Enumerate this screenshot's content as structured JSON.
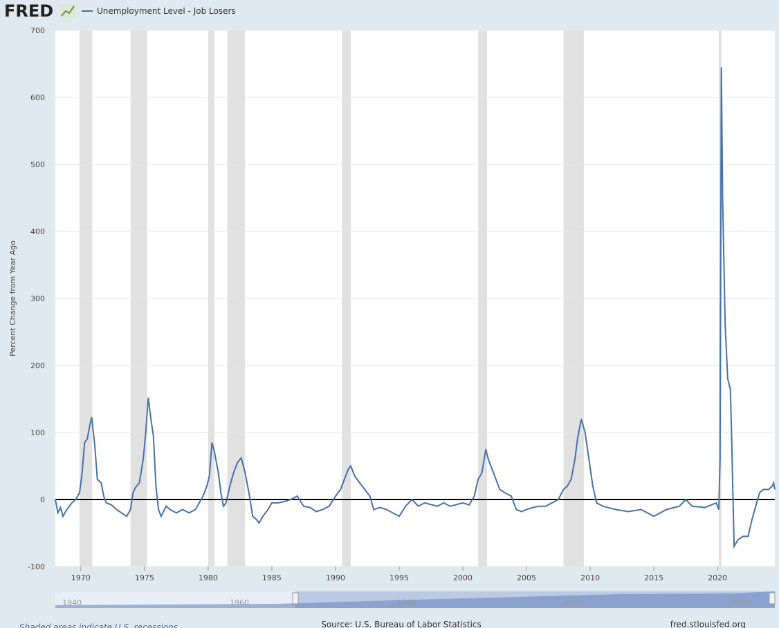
{
  "header": {
    "logo": "FRED"
  },
  "chart_data": {
    "type": "line",
    "y_label": "Percent Change from Year Ago",
    "xlim": [
      1968,
      2024.5
    ],
    "xticks": [
      1970,
      1975,
      1980,
      1985,
      1990,
      1995,
      2000,
      2005,
      2010,
      2015,
      2020
    ],
    "ylim": [
      -100,
      700
    ],
    "yticks": [
      -100,
      0,
      100,
      200,
      300,
      400,
      500,
      600,
      700
    ],
    "grid": true,
    "recessions": [
      [
        1969.9,
        1970.9
      ],
      [
        1973.9,
        1975.2
      ],
      [
        1980.0,
        1980.5
      ],
      [
        1981.5,
        1982.9
      ],
      [
        1990.5,
        1991.2
      ],
      [
        2001.2,
        2001.9
      ],
      [
        2007.9,
        2009.5
      ],
      [
        2020.1,
        2020.3
      ]
    ],
    "x": [
      1968.0,
      1968.2,
      1968.4,
      1968.6,
      1968.9,
      1969.3,
      1969.6,
      1969.9,
      1970.1,
      1970.3,
      1970.5,
      1970.7,
      1970.85,
      1971.1,
      1971.3,
      1971.6,
      1971.8,
      1972.0,
      1972.4,
      1972.8,
      1973.2,
      1973.6,
      1973.9,
      1974.1,
      1974.3,
      1974.6,
      1974.9,
      1975.1,
      1975.3,
      1975.5,
      1975.7,
      1975.9,
      1976.1,
      1976.3,
      1976.7,
      1977.0,
      1977.5,
      1978.0,
      1978.5,
      1979.0,
      1979.3,
      1979.6,
      1979.9,
      1980.1,
      1980.3,
      1980.5,
      1980.8,
      1981.0,
      1981.2,
      1981.4,
      1981.7,
      1982.0,
      1982.3,
      1982.6,
      1982.9,
      1983.2,
      1983.5,
      1983.8,
      1984.0,
      1984.3,
      1984.7,
      1985.0,
      1985.5,
      1986.0,
      1986.5,
      1987.0,
      1987.5,
      1988.0,
      1988.5,
      1989.0,
      1989.5,
      1990.0,
      1990.4,
      1990.7,
      1991.0,
      1991.2,
      1991.5,
      1991.9,
      1992.3,
      1992.7,
      1993.0,
      1993.5,
      1994.0,
      1994.5,
      1995.0,
      1995.5,
      1996.0,
      1996.5,
      1997.0,
      1998.0,
      1998.5,
      1999.0,
      2000.0,
      2000.5,
      2000.9,
      2001.2,
      2001.5,
      2001.8,
      2002.0,
      2002.3,
      2002.6,
      2002.9,
      2003.3,
      2003.8,
      2004.2,
      2004.6,
      2005.0,
      2005.5,
      2006.0,
      2006.5,
      2007.0,
      2007.5,
      2007.9,
      2008.2,
      2008.5,
      2008.8,
      2009.0,
      2009.3,
      2009.6,
      2009.9,
      2010.2,
      2010.5,
      2011.0,
      2012.0,
      2013.0,
      2014.0,
      2015.0,
      2015.5,
      2016.0,
      2017.0,
      2017.5,
      2018.0,
      2019.0,
      2019.9,
      2020.1,
      2020.2,
      2020.3,
      2020.4,
      2020.6,
      2020.8,
      2021.0,
      2021.1,
      2021.3,
      2021.6,
      2022.0,
      2022.4,
      2022.7,
      2023.0,
      2023.3,
      2023.6,
      2024.0,
      2024.3,
      2024.4,
      2024.5
    ],
    "series": [
      {
        "name": "Unemployment Level - Job Losers",
        "color": "#4572a7",
        "values": [
          0,
          -20,
          -12,
          -25,
          -15,
          -5,
          0,
          10,
          40,
          85,
          90,
          110,
          123,
          80,
          30,
          25,
          5,
          -5,
          -8,
          -15,
          -20,
          -25,
          -15,
          10,
          18,
          25,
          60,
          100,
          152,
          120,
          95,
          20,
          -15,
          -25,
          -10,
          -15,
          -20,
          -15,
          -20,
          -15,
          -5,
          5,
          20,
          35,
          85,
          70,
          40,
          10,
          -10,
          -5,
          20,
          40,
          55,
          62,
          40,
          10,
          -25,
          -30,
          -35,
          -25,
          -15,
          -5,
          -5,
          -3,
          0,
          5,
          -10,
          -12,
          -18,
          -15,
          -10,
          5,
          15,
          30,
          45,
          50,
          35,
          25,
          15,
          5,
          -15,
          -12,
          -15,
          -20,
          -25,
          -10,
          0,
          -10,
          -5,
          -10,
          -5,
          -10,
          -5,
          -8,
          5,
          30,
          40,
          75,
          60,
          45,
          30,
          15,
          10,
          5,
          -15,
          -18,
          -15,
          -12,
          -10,
          -10,
          -5,
          0,
          15,
          20,
          30,
          60,
          90,
          120,
          100,
          60,
          20,
          -5,
          -10,
          -15,
          -18,
          -15,
          -25,
          -20,
          -15,
          -10,
          0,
          -10,
          -12,
          -5,
          -15,
          60,
          645,
          450,
          260,
          180,
          165,
          100,
          -70,
          -60,
          -55,
          -55,
          -30,
          -10,
          10,
          15,
          15,
          20,
          25,
          15
        ]
      }
    ]
  },
  "navigator": {
    "xlim": [
      1938,
      2024
    ],
    "xticks": [
      1940,
      1960,
      1980,
      2000,
      2020
    ],
    "range": [
      1966.7,
      2024
    ]
  },
  "footer": {
    "note": "Shaded areas indicate U.S. recessions",
    "source": "Source: U.S. Bureau of Labor Statistics",
    "site": "fred.stlouisfed.org"
  }
}
